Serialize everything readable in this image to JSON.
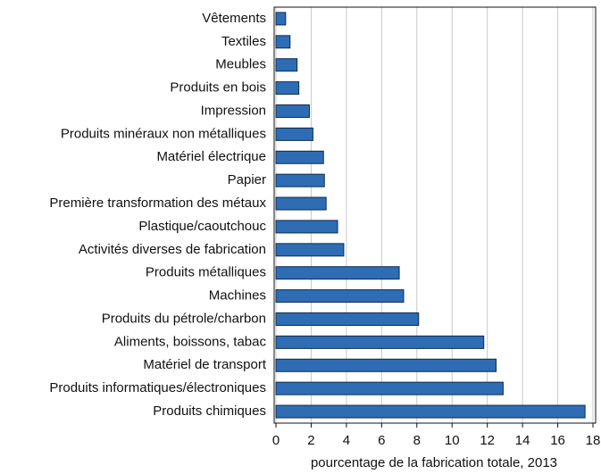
{
  "chart_data": {
    "type": "barh",
    "xlabel": "pourcentage de la fabrication totale, 2013",
    "categories": [
      "Vêtements",
      "Textiles",
      "Meubles",
      "Produits en bois",
      "Impression",
      "Produits minéraux non métalliques",
      "Matériel électrique",
      "Papier",
      "Première transformation des métaux",
      "Plastique/caoutchouc",
      "Activités diverses de fabrication",
      "Produits métalliques",
      "Machines",
      "Produits du pétrole/charbon",
      "Aliments, boissons, tabac",
      "Matériel de transport",
      "Produits informatiques/électroniques",
      "Produits chimiques"
    ],
    "values": [
      0.55,
      0.8,
      1.2,
      1.3,
      1.9,
      2.1,
      2.7,
      2.75,
      2.85,
      3.5,
      3.85,
      7.0,
      7.25,
      8.1,
      11.8,
      12.5,
      12.9,
      17.55
    ],
    "color": "#2e6db4",
    "xlim": [
      0,
      18
    ],
    "xticks": [
      0,
      2,
      4,
      6,
      8,
      10,
      12,
      14,
      16,
      18
    ],
    "grid": true
  }
}
